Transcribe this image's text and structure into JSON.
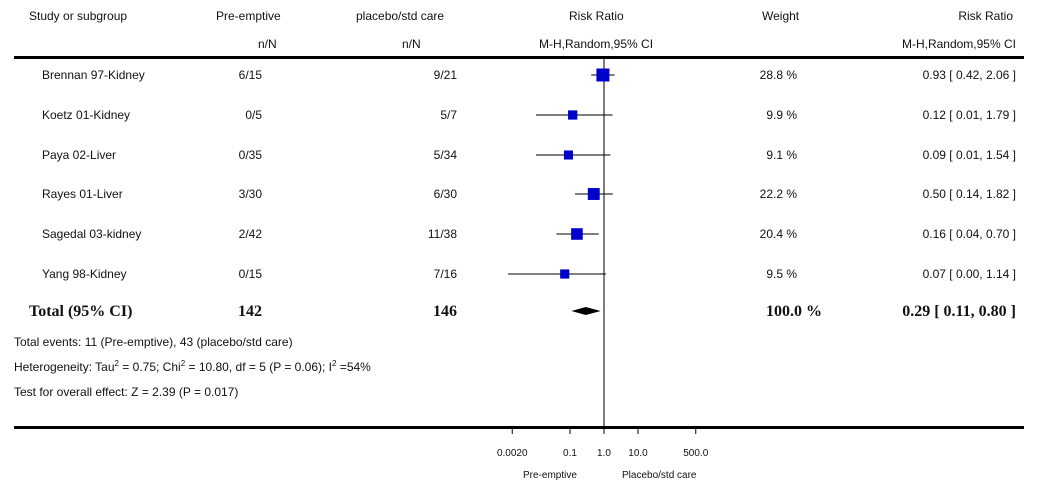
{
  "header": {
    "col_study": "Study or subgroup",
    "col_exp": "Pre-emptive",
    "col_ctl": "placebo/std care",
    "col_rr_plot": "Risk Ratio",
    "col_weight": "Weight",
    "col_rr": "Risk Ratio",
    "sub_exp": "n/N",
    "sub_ctl": "n/N",
    "sub_rr_plot": "M-H,Random,95% CI",
    "sub_rr": "M-H,Random,95% CI"
  },
  "rows": [
    {
      "study": "Brennan 97-Kidney",
      "exp": "6/15",
      "ctl": "9/21",
      "weight": "28.8 %",
      "ci_text": "0.93 [ 0.42, 2.06 ]"
    },
    {
      "study": "Koetz 01-Kidney",
      "exp": "0/5",
      "ctl": "5/7",
      "weight": "9.9 %",
      "ci_text": "0.12 [ 0.01, 1.79 ]"
    },
    {
      "study": "Paya 02-Liver",
      "exp": "0/35",
      "ctl": "5/34",
      "weight": "9.1 %",
      "ci_text": "0.09 [ 0.01, 1.54 ]"
    },
    {
      "study": "Rayes 01-Liver",
      "exp": "3/30",
      "ctl": "6/30",
      "weight": "22.2 %",
      "ci_text": "0.50 [ 0.14, 1.82 ]"
    },
    {
      "study": "Sagedal 03-kidney",
      "exp": "2/42",
      "ctl": "11/38",
      "weight": "20.4 %",
      "ci_text": "0.16 [ 0.04, 0.70 ]"
    },
    {
      "study": "Yang 98-Kidney",
      "exp": "0/15",
      "ctl": "7/16",
      "weight": "9.5 %",
      "ci_text": "0.07 [ 0.00, 1.14 ]"
    }
  ],
  "total": {
    "label": "Total (95% CI)",
    "exp": "142",
    "ctl": "146",
    "weight": "100.0 %",
    "ci_text": "0.29 [ 0.11, 0.80 ]"
  },
  "footnotes": {
    "events": "Total events: 11 (Pre-emptive), 43 (placebo/std care)",
    "heterogeneity_a": "Heterogeneity: Tau",
    "heterogeneity_b": " = 0.75; Chi",
    "heterogeneity_c": " = 10.80, df = 5 (P = 0.06); I",
    "heterogeneity_d": " =54%",
    "sup2": "2",
    "overall": "Test for overall effect: Z = 2.39 (P = 0.017)"
  },
  "axis": {
    "favours_left": "Pre-emptive",
    "favours_right": "Placebo/std care"
  },
  "colors": {
    "marker": "#0000cc",
    "diamond": "#000000",
    "line": "#000000"
  },
  "chart_data": {
    "type": "forest",
    "scale": "log",
    "xlim": [
      0.002,
      500
    ],
    "ticks": [
      {
        "value": 0.002,
        "label": "0.0020"
      },
      {
        "value": 0.1,
        "label": "0.1"
      },
      {
        "value": 1,
        "label": "1.0"
      },
      {
        "value": 10,
        "label": "10.0"
      },
      {
        "value": 500,
        "label": "500.0"
      }
    ],
    "reference_line": 1,
    "studies": [
      {
        "name": "Brennan 97-Kidney",
        "rr": 0.93,
        "lo": 0.42,
        "hi": 2.06,
        "weight": 28.8
      },
      {
        "name": "Koetz 01-Kidney",
        "rr": 0.12,
        "lo": 0.01,
        "hi": 1.79,
        "weight": 9.9
      },
      {
        "name": "Paya 02-Liver",
        "rr": 0.09,
        "lo": 0.01,
        "hi": 1.54,
        "weight": 9.1
      },
      {
        "name": "Rayes 01-Liver",
        "rr": 0.5,
        "lo": 0.14,
        "hi": 1.82,
        "weight": 22.2
      },
      {
        "name": "Sagedal 03-kidney",
        "rr": 0.16,
        "lo": 0.04,
        "hi": 0.7,
        "weight": 20.4
      },
      {
        "name": "Yang 98-Kidney",
        "rr": 0.07,
        "lo": 0.0,
        "hi": 1.14,
        "weight": 9.5
      }
    ],
    "pooled": {
      "rr": 0.29,
      "lo": 0.11,
      "hi": 0.8
    }
  }
}
